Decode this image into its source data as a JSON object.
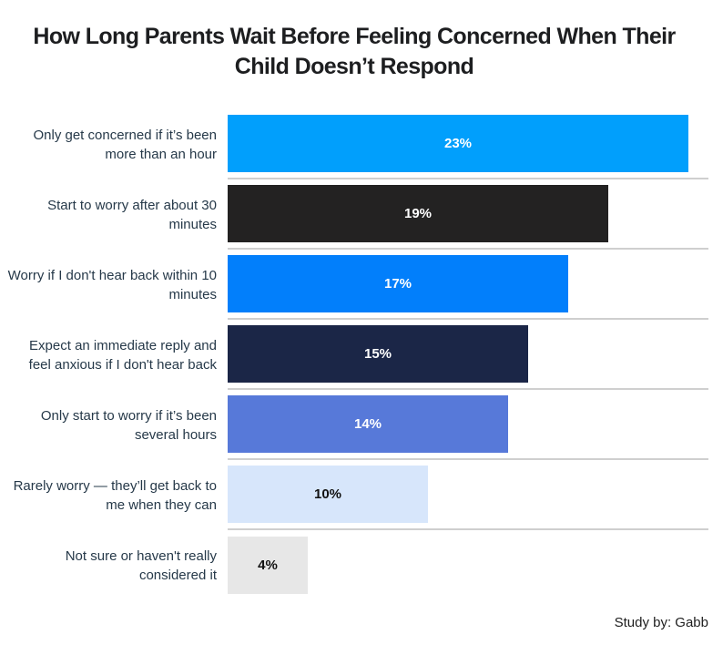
{
  "page": {
    "title": "How Long Parents Wait Before Feeling Concerned When Their Child Doesn’t Respond",
    "footer": "Study by: Gabb"
  },
  "chart_data": {
    "type": "bar",
    "orientation": "horizontal",
    "title": "How Long Parents Wait Before Feeling Concerned When Their Child Doesn’t Respond",
    "categories": [
      "Only get concerned if it’s been more than an hour",
      "Start to worry after about 30 minutes",
      "Worry if I don't hear back within 10 minutes",
      "Expect an immediate reply and feel anxious if I don't hear back",
      "Only start to worry if it’s been several hours",
      "Rarely worry — they’ll get back to me when they can",
      "Not sure or haven't really considered it"
    ],
    "values": [
      23,
      19,
      17,
      15,
      14,
      10,
      4
    ],
    "value_labels": [
      "23%",
      "19%",
      "17%",
      "15%",
      "14%",
      "10%",
      "4%"
    ],
    "bar_colors": [
      "#019FFC",
      "#232222",
      "#027FFB",
      "#1B2647",
      "#5779D9",
      "#D7E6FB",
      "#E7E7E7"
    ],
    "value_label_colors": [
      "#ffffff",
      "#ffffff",
      "#ffffff",
      "#ffffff",
      "#ffffff",
      "#121212",
      "#121212"
    ],
    "xlim": [
      0,
      24
    ],
    "xlabel": "",
    "ylabel": "",
    "grid": "row separator lines only, no axes or ticks",
    "legend": "none",
    "value_label_position": "centered inside bar",
    "source_note": "Study by: Gabb"
  }
}
